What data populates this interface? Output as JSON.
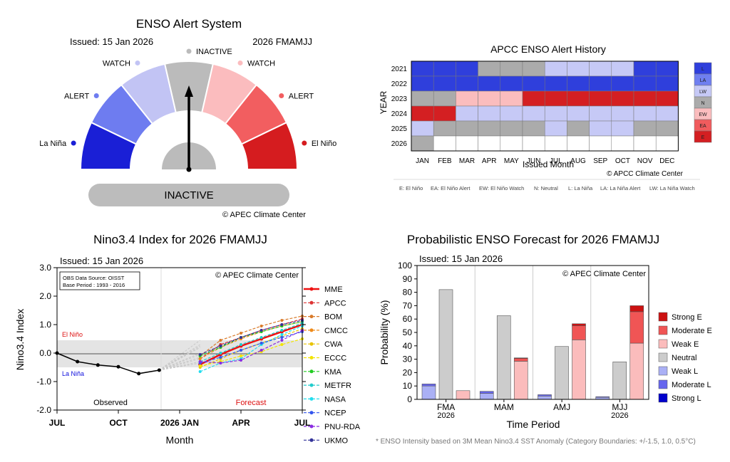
{
  "gauge": {
    "title": "ENSO Alert System",
    "issued": "Issued: 15 Jan 2026",
    "season": "2026 FMAMJJ",
    "status": "INACTIVE",
    "copyright": "© APEC Climate Center",
    "labels": [
      "La Niña",
      "ALERT",
      "WATCH",
      "INACTIVE",
      "WATCH",
      "ALERT",
      "El Niño"
    ],
    "colors": [
      "#1a1fd6",
      "#6e7cf0",
      "#c2c4f4",
      "#bbbbbb",
      "#fbbcbe",
      "#f25e60",
      "#d51c1f"
    ],
    "pointer_segment": 3
  },
  "history": {
    "title": "APCC ENSO Alert History",
    "ylabel": "YEAR",
    "xlabel": "Issued Month",
    "copyright": "© APCC Climate Center",
    "years": [
      "2021",
      "2022",
      "2023",
      "2024",
      "2025",
      "2026"
    ],
    "months": [
      "JAN",
      "FEB",
      "MAR",
      "APR",
      "MAY",
      "JUN",
      "JUL",
      "AUG",
      "SEP",
      "OCT",
      "NOV",
      "DEC"
    ],
    "grid": [
      [
        "L",
        "L",
        "L",
        "N",
        "N",
        "N",
        "LW",
        "LW",
        "LW",
        "LW",
        "L",
        "L"
      ],
      [
        "L",
        "L",
        "L",
        "L",
        "L",
        "L",
        "L",
        "L",
        "L",
        "L",
        "L",
        "L"
      ],
      [
        "N",
        "N",
        "EW",
        "EW",
        "EW",
        "E",
        "E",
        "E",
        "E",
        "E",
        "E",
        "E"
      ],
      [
        "E",
        "E",
        "LW",
        "LW",
        "LW",
        "LW",
        "LW",
        "LW",
        "LW",
        "LW",
        "LW",
        "LW"
      ],
      [
        "LW",
        "N",
        "N",
        "N",
        "N",
        "N",
        "LW",
        "N",
        "LW",
        "LW",
        "N",
        "N"
      ],
      [
        "N",
        "",
        "",
        "",
        "",
        "",
        "",
        "",
        "",
        "",
        "",
        ""
      ]
    ],
    "legend_codes": [
      "L",
      "LA",
      "LW",
      "N",
      "EW",
      "EA",
      "E"
    ],
    "legend_colors": {
      "L": "#2f3fdc",
      "LA": "#6f7ff0",
      "LW": "#c6c9f6",
      "N": "#ababab",
      "EW": "#fbbdbe",
      "EA": "#f15b5d",
      "E": "#d41f22"
    },
    "footnote": [
      "E: El Niño",
      "EA: El Niño Alert",
      "EW: El Niño Watch",
      "N: Neutral",
      "L: La Niña",
      "LA: La Niña Alert",
      "LW: La Niña Watch"
    ]
  },
  "nino": {
    "title": "Nino3.4 Index for 2026 FMAMJJ",
    "issued": "Issued: 15 Jan 2026",
    "source": "OBS Data Source: OISST",
    "base_period": "Base Period : 1993 - 2016",
    "copyright": "© APEC Climate Center",
    "ylabel": "Nino3.4 Index",
    "xlabel": "Month",
    "el_nino": "El Niño",
    "la_nina": "La Niña",
    "observed": "Observed",
    "forecast": "Forecast",
    "yticks": [
      "3.0",
      "2.0",
      "1.0",
      "0.0",
      "-1.0",
      "-2.0"
    ],
    "xticks": [
      "JUL",
      "OCT",
      "2026 JAN",
      "APR",
      "JUL"
    ],
    "observed_values": [
      0.0,
      -0.3,
      -0.42,
      -0.48,
      -0.72,
      -0.6
    ],
    "models": [
      {
        "name": "MME",
        "color": "#ee1111",
        "values": [
          -0.4,
          -0.05,
          0.25,
          0.5,
          0.75,
          1.0
        ]
      },
      {
        "name": "APCC",
        "color": "#dd3333",
        "values": [
          -0.2,
          0.3,
          0.55,
          0.8,
          1.0,
          1.2
        ]
      },
      {
        "name": "BOM",
        "color": "#d97a2a",
        "values": [
          -0.1,
          0.45,
          0.7,
          0.95,
          1.15,
          1.3
        ]
      },
      {
        "name": "CMCC",
        "color": "#ee8a1a",
        "values": [
          -0.2,
          0.2,
          0.5,
          0.75,
          0.95,
          1.1
        ]
      },
      {
        "name": "CWA",
        "color": "#e8c300",
        "values": [
          -0.5,
          -0.2,
          0.1,
          0.35,
          0.6,
          0.85
        ]
      },
      {
        "name": "ECCC",
        "color": "#f2e400",
        "values": [
          -0.45,
          -0.3,
          -0.1,
          0.05,
          0.3,
          0.5
        ]
      },
      {
        "name": "KMA",
        "color": "#22cc22",
        "values": [
          -0.1,
          0.2,
          0.55,
          0.75,
          0.95,
          1.1
        ]
      },
      {
        "name": "METFR",
        "color": "#22cccc",
        "values": [
          -0.3,
          0.0,
          0.3,
          0.55,
          0.8,
          1.05
        ]
      },
      {
        "name": "NASA",
        "color": "#22ddee",
        "values": [
          -0.65,
          -0.35,
          -0.2,
          0.3,
          0.65,
          0.95
        ]
      },
      {
        "name": "NCEP",
        "color": "#3355ee",
        "values": [
          -0.35,
          -0.15,
          0.1,
          0.35,
          0.55,
          0.75
        ]
      },
      {
        "name": "PNU-RDA",
        "color": "#8a2be2",
        "values": [
          -0.3,
          -0.35,
          -0.25,
          0.1,
          0.45,
          0.8
        ]
      },
      {
        "name": "UKMO",
        "color": "#333399",
        "values": [
          -0.05,
          0.25,
          0.55,
          0.8,
          1.0,
          1.15
        ]
      }
    ]
  },
  "prob": {
    "title": "Probabilistic ENSO Forecast for 2026 FMAMJJ",
    "issued": "Issued: 15 Jan 2026",
    "copyright": "© APEC Climate Center",
    "ylabel": "Probability (%)",
    "xlabel": "Time Period",
    "yticks": [
      "100",
      "90",
      "80",
      "70",
      "60",
      "50",
      "40",
      "30",
      "20",
      "10",
      "0"
    ],
    "periods": [
      "FMA",
      "MAM",
      "AMJ",
      "MJJ"
    ],
    "period_years": [
      "2026",
      "",
      "",
      "2026"
    ],
    "la_nina": [
      {
        "weak": 10,
        "moderate": 1.5,
        "strong": 0
      },
      {
        "weak": 4.5,
        "moderate": 1.5,
        "strong": 0
      },
      {
        "weak": 2.5,
        "moderate": 1,
        "strong": 0
      },
      {
        "weak": 1.5,
        "moderate": 0.5,
        "strong": 0
      }
    ],
    "neutral": [
      82,
      62.5,
      39.5,
      28
    ],
    "el_nino": [
      {
        "weak": 6.5,
        "moderate": 0,
        "strong": 0
      },
      {
        "weak": 28.5,
        "moderate": 2,
        "strong": 0.5
      },
      {
        "weak": 44.5,
        "moderate": 10.5,
        "strong": 1.5
      },
      {
        "weak": 42,
        "moderate": 23.5,
        "strong": 4.5
      }
    ],
    "legend": [
      {
        "name": "Strong E",
        "color": "#cc1111"
      },
      {
        "name": "Moderate E",
        "color": "#f05555"
      },
      {
        "name": "Weak E",
        "color": "#fbbcbc"
      },
      {
        "name": "Neutral",
        "color": "#cccccc"
      },
      {
        "name": "Weak L",
        "color": "#aab0f5"
      },
      {
        "name": "Moderate L",
        "color": "#6666ee"
      },
      {
        "name": "Strong L",
        "color": "#0000cc"
      }
    ],
    "footnote": "* ENSO Intensity based on 3M Mean Nino3.4 SST Anomaly (Category Boundaries: +/-1.5, 1.0, 0.5°C)"
  },
  "chart_data": [
    {
      "type": "gauge",
      "title": "ENSO Alert System",
      "categories": [
        "La Niña",
        "ALERT",
        "WATCH",
        "INACTIVE",
        "WATCH",
        "ALERT",
        "El Niño"
      ],
      "value": "INACTIVE"
    },
    {
      "type": "heatmap",
      "title": "APCC ENSO Alert History",
      "xlabel": "Issued Month",
      "ylabel": "YEAR"
    },
    {
      "type": "line",
      "title": "Nino3.4 Index for 2026 FMAMJJ",
      "xlabel": "Month",
      "ylabel": "Nino3.4 Index",
      "ylim": [
        -2.0,
        3.0
      ]
    },
    {
      "type": "bar",
      "title": "Probabilistic ENSO Forecast for 2026 FMAMJJ",
      "xlabel": "Time Period",
      "ylabel": "Probability (%)",
      "ylim": [
        0,
        100
      ]
    }
  ]
}
